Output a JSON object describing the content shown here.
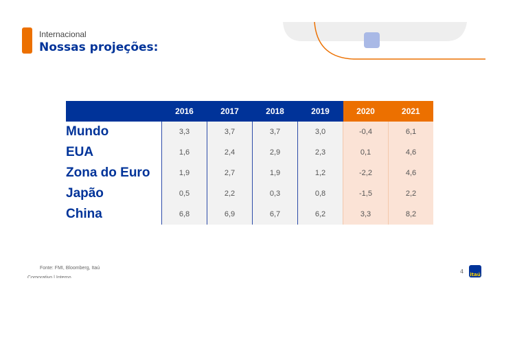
{
  "header": {
    "subtitle": "Internacional",
    "title": "Nossas projeções:"
  },
  "table": {
    "columns": [
      "2016",
      "2017",
      "2018",
      "2019",
      "2020",
      "2021"
    ],
    "rows": [
      {
        "label": "Mundo",
        "values": [
          "3,3",
          "3,7",
          "3,7",
          "3,0",
          "-0,4",
          "6,1"
        ]
      },
      {
        "label": "EUA",
        "values": [
          "1,6",
          "2,4",
          "2,9",
          "2,3",
          "0,1",
          "4,6"
        ]
      },
      {
        "label": "Zona do Euro",
        "values": [
          "1,9",
          "2,7",
          "1,9",
          "1,2",
          "-2,2",
          "4,6"
        ]
      },
      {
        "label": "Japão",
        "values": [
          "0,5",
          "2,2",
          "0,3",
          "0,8",
          "-1,5",
          "2,2"
        ]
      },
      {
        "label": "China",
        "values": [
          "6,8",
          "6,9",
          "6,7",
          "6,2",
          "3,3",
          "8,2"
        ]
      }
    ]
  },
  "footer": {
    "source": "Fonte: FMI, Bloomberg, Itaú",
    "classification": "Corporativo | Interno",
    "page": "4",
    "logo": "itaú"
  }
}
